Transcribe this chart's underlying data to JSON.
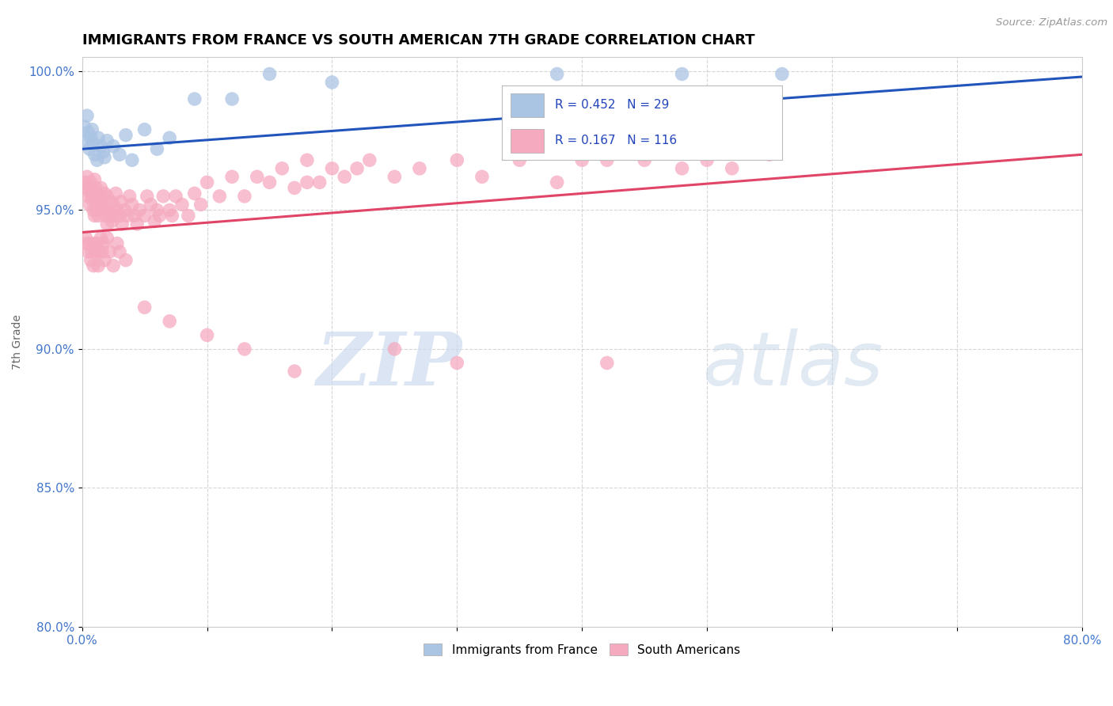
{
  "title": "IMMIGRANTS FROM FRANCE VS SOUTH AMERICAN 7TH GRADE CORRELATION CHART",
  "source": "Source: ZipAtlas.com",
  "ylabel": "7th Grade",
  "xlim": [
    0.0,
    0.8
  ],
  "ylim": [
    0.8,
    1.005
  ],
  "xticks": [
    0.0,
    0.1,
    0.2,
    0.3,
    0.4,
    0.5,
    0.6,
    0.7,
    0.8
  ],
  "yticks": [
    0.8,
    0.85,
    0.9,
    0.95,
    1.0
  ],
  "yticklabels": [
    "80.0%",
    "85.0%",
    "90.0%",
    "95.0%",
    "100.0%"
  ],
  "legend_blue_label": "Immigrants from France",
  "legend_pink_label": "South Americans",
  "blue_R": 0.452,
  "blue_N": 29,
  "pink_R": 0.167,
  "pink_N": 116,
  "blue_color": "#aac4e4",
  "pink_color": "#f5aabf",
  "blue_line_color": "#2255bb",
  "pink_line_color": "#e04466",
  "watermark_zip": "ZIP",
  "watermark_atlas": "atlas",
  "blue_trendline": [
    0.0,
    0.8,
    0.972,
    0.998
  ],
  "pink_trendline": [
    0.0,
    0.8,
    0.942,
    0.97
  ],
  "blue_scatter_x": [
    0.002,
    0.003,
    0.004,
    0.005,
    0.006,
    0.007,
    0.008,
    0.009,
    0.01,
    0.012,
    0.013,
    0.015,
    0.017,
    0.018,
    0.02,
    0.025,
    0.03,
    0.035,
    0.04,
    0.05,
    0.06,
    0.07,
    0.09,
    0.12,
    0.15,
    0.2,
    0.38,
    0.48,
    0.56
  ],
  "blue_scatter_y": [
    0.98,
    0.975,
    0.984,
    0.978,
    0.972,
    0.976,
    0.979,
    0.974,
    0.97,
    0.968,
    0.976,
    0.973,
    0.971,
    0.969,
    0.975,
    0.973,
    0.97,
    0.977,
    0.968,
    0.979,
    0.972,
    0.976,
    0.99,
    0.99,
    0.999,
    0.996,
    0.999,
    0.999,
    0.999
  ],
  "pink_scatter_x": [
    0.002,
    0.003,
    0.004,
    0.005,
    0.006,
    0.006,
    0.007,
    0.007,
    0.008,
    0.008,
    0.009,
    0.009,
    0.01,
    0.01,
    0.011,
    0.011,
    0.012,
    0.012,
    0.013,
    0.013,
    0.014,
    0.015,
    0.015,
    0.016,
    0.017,
    0.018,
    0.019,
    0.02,
    0.02,
    0.021,
    0.022,
    0.023,
    0.024,
    0.025,
    0.026,
    0.027,
    0.028,
    0.03,
    0.031,
    0.032,
    0.034,
    0.036,
    0.038,
    0.04,
    0.042,
    0.044,
    0.046,
    0.05,
    0.052,
    0.055,
    0.058,
    0.06,
    0.062,
    0.065,
    0.07,
    0.072,
    0.075,
    0.08,
    0.085,
    0.09,
    0.095,
    0.1,
    0.11,
    0.12,
    0.13,
    0.14,
    0.15,
    0.16,
    0.17,
    0.18,
    0.19,
    0.2,
    0.21,
    0.22,
    0.23,
    0.25,
    0.27,
    0.3,
    0.32,
    0.35,
    0.38,
    0.4,
    0.42,
    0.45,
    0.48,
    0.5,
    0.52,
    0.55,
    0.003,
    0.004,
    0.005,
    0.006,
    0.007,
    0.008,
    0.009,
    0.01,
    0.011,
    0.012,
    0.013,
    0.014,
    0.015,
    0.016,
    0.017,
    0.018,
    0.02,
    0.022,
    0.025,
    0.028,
    0.03,
    0.035,
    0.18,
    0.45,
    0.05,
    0.07,
    0.1,
    0.13,
    0.17,
    0.25,
    0.3,
    0.42
  ],
  "pink_scatter_y": [
    0.96,
    0.958,
    0.962,
    0.955,
    0.958,
    0.952,
    0.96,
    0.956,
    0.958,
    0.954,
    0.95,
    0.955,
    0.961,
    0.948,
    0.958,
    0.953,
    0.956,
    0.95,
    0.955,
    0.948,
    0.953,
    0.958,
    0.952,
    0.955,
    0.95,
    0.956,
    0.948,
    0.955,
    0.945,
    0.95,
    0.948,
    0.953,
    0.946,
    0.952,
    0.948,
    0.956,
    0.95,
    0.948,
    0.953,
    0.945,
    0.95,
    0.948,
    0.955,
    0.952,
    0.948,
    0.945,
    0.95,
    0.948,
    0.955,
    0.952,
    0.946,
    0.95,
    0.948,
    0.955,
    0.95,
    0.948,
    0.955,
    0.952,
    0.948,
    0.956,
    0.952,
    0.96,
    0.955,
    0.962,
    0.955,
    0.962,
    0.96,
    0.965,
    0.958,
    0.968,
    0.96,
    0.965,
    0.962,
    0.965,
    0.968,
    0.962,
    0.965,
    0.968,
    0.962,
    0.968,
    0.96,
    0.968,
    0.968,
    0.97,
    0.965,
    0.968,
    0.965,
    0.97,
    0.94,
    0.938,
    0.935,
    0.938,
    0.932,
    0.935,
    0.93,
    0.938,
    0.935,
    0.938,
    0.93,
    0.935,
    0.94,
    0.935,
    0.938,
    0.932,
    0.94,
    0.935,
    0.93,
    0.938,
    0.935,
    0.932,
    0.96,
    0.968,
    0.915,
    0.91,
    0.905,
    0.9,
    0.892,
    0.9,
    0.895,
    0.895
  ]
}
